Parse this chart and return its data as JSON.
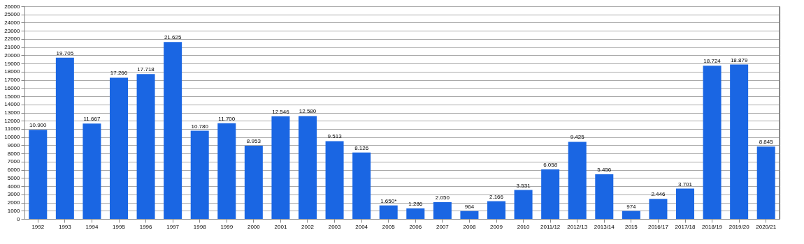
{
  "chart_data": {
    "type": "bar",
    "categories": [
      "1992",
      "1993",
      "1994",
      "1995",
      "1996",
      "1997",
      "1998",
      "1999",
      "2000",
      "2001",
      "2002",
      "2003",
      "2004",
      "2005",
      "2006",
      "2007",
      "2008",
      "2009",
      "2010",
      "2011/12",
      "2012/13",
      "2013/14",
      "2015",
      "2016/17",
      "2017/18",
      "2018/19",
      "2019/20",
      "2020/21"
    ],
    "values": [
      10900,
      19705,
      11667,
      17266,
      17718,
      21625,
      10780,
      11700,
      8953,
      12546,
      12580,
      9513,
      8126,
      1650,
      1286,
      2050,
      964,
      2166,
      3531,
      6058,
      9425,
      5456,
      974,
      2446,
      3701,
      18724,
      18879,
      8845
    ],
    "value_labels": [
      "10.900",
      "19.705",
      "11.667",
      "17.266",
      "17.718",
      "21.625",
      "10.780",
      "11.700",
      "8.953",
      "12.546",
      "12.580",
      "9.513",
      "8.126",
      "1.650*",
      "1.286",
      "2.050",
      "964",
      "2.166",
      "3.531",
      "6.058",
      "9.425",
      "5.456",
      "974",
      "2.446",
      "3.701",
      "18.724",
      "18.879",
      "8.845"
    ],
    "color": "#1a66e3",
    "ylim": [
      0,
      26000
    ],
    "yticks": [
      0,
      1000,
      2000,
      3000,
      4000,
      5000,
      6000,
      7000,
      8000,
      9000,
      10000,
      11000,
      12000,
      13000,
      14000,
      15000,
      16000,
      17000,
      18000,
      19000,
      20000,
      21000,
      22000,
      23000,
      24000,
      25000,
      26000
    ],
    "grid": "y"
  }
}
